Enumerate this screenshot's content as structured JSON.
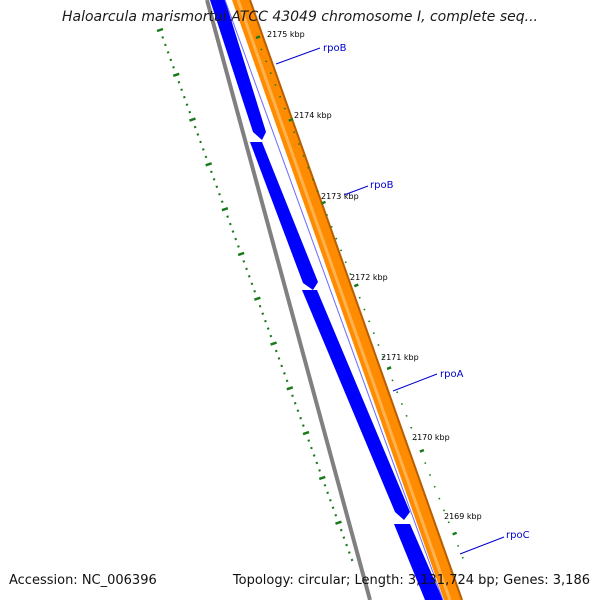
{
  "header": {
    "title": "Haloarcula marismortui ATCC 43049 chromosome I, complete seq..."
  },
  "footer": {
    "accession": "Accession: NC_006396",
    "summary": "Topology: circular; Length: 3,131,724 bp; Genes: 3,186"
  },
  "ticks": [
    {
      "label": "2175 kbp"
    },
    {
      "label": "2174 kbp"
    },
    {
      "label": "2173 kbp"
    },
    {
      "label": "2172 kbp"
    },
    {
      "label": "2171 kbp"
    },
    {
      "label": "2170 kbp"
    },
    {
      "label": "2169 kbp"
    }
  ],
  "genes": [
    {
      "label": "rpoB"
    },
    {
      "label": "rpoB"
    },
    {
      "label": "rpoA"
    },
    {
      "label": "rpoC"
    }
  ],
  "colors": {
    "forward_strand": "#ff8c00",
    "reverse_strand": "#0000ff",
    "backbone": "#808080",
    "ticks": "#1a7a1a",
    "gene_label": "#0000cc"
  }
}
